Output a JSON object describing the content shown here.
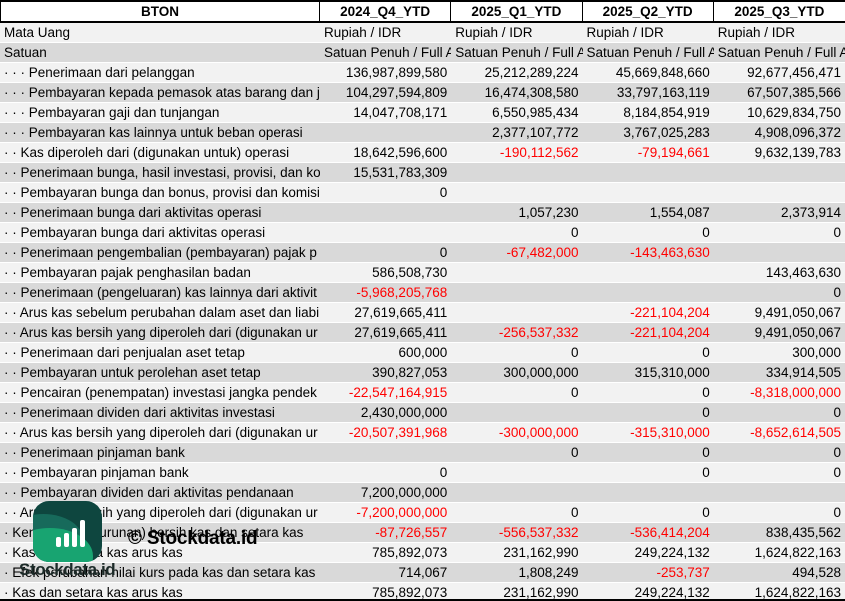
{
  "colors": {
    "negative_value": "#ff0000",
    "stripe_light": "#f2f2f2",
    "stripe_dark": "#d9d9d9",
    "logo_dark_teal": "#0e463f",
    "logo_green": "#18a471"
  },
  "table": {
    "ticker": "BTON",
    "periods": [
      "2024_Q4_YTD",
      "2025_Q1_YTD",
      "2025_Q2_YTD",
      "2025_Q3_YTD"
    ],
    "currency_row": {
      "label": "Mata Uang",
      "values": [
        "Rupiah / IDR",
        "Rupiah / IDR",
        "Rupiah / IDR",
        "Rupiah / IDR"
      ]
    },
    "unit_row": {
      "label": "Satuan",
      "values": [
        "Satuan Penuh / Full A",
        "Satuan Penuh / Full A",
        "Satuan Penuh / Full A",
        "Satuan Penuh / Full A"
      ]
    },
    "rows": [
      {
        "label": "· · · Penerimaan dari pelanggan",
        "values": [
          "136,987,899,580",
          "25,212,289,224",
          "45,669,848,660",
          "92,677,456,471"
        ]
      },
      {
        "label": "· · · Pembayaran kepada pemasok atas barang dan ja",
        "values": [
          "104,297,594,809",
          "16,474,308,580",
          "33,797,163,119",
          "67,507,385,566"
        ]
      },
      {
        "label": "· · · Pembayaran gaji dan tunjangan",
        "values": [
          "14,047,708,171",
          "6,550,985,434",
          "8,184,854,919",
          "10,629,834,750"
        ]
      },
      {
        "label": "· · · Pembayaran kas lainnya untuk beban operasi",
        "values": [
          "",
          "2,377,107,772",
          "3,767,025,283",
          "4,908,096,372"
        ]
      },
      {
        "label": "· · Kas diperoleh dari (digunakan untuk) operasi",
        "values": [
          "18,642,596,600",
          "-190,112,562",
          "-79,194,661",
          "9,632,139,783"
        ]
      },
      {
        "label": "· · Penerimaan bunga, hasil investasi, provisi, dan ko",
        "values": [
          "15,531,783,309",
          "",
          "",
          ""
        ]
      },
      {
        "label": "· · Pembayaran bunga dan bonus, provisi dan komisi",
        "values": [
          "0",
          "",
          "",
          ""
        ]
      },
      {
        "label": "· · Penerimaan bunga dari aktivitas operasi",
        "values": [
          "",
          "1,057,230",
          "1,554,087",
          "2,373,914"
        ]
      },
      {
        "label": "· · Pembayaran bunga dari aktivitas operasi",
        "values": [
          "",
          "0",
          "0",
          "0"
        ]
      },
      {
        "label": "· · Penerimaan pengembalian (pembayaran) pajak p",
        "values": [
          "0",
          "-67,482,000",
          "-143,463,630",
          ""
        ]
      },
      {
        "label": "· · Pembayaran pajak penghasilan badan",
        "values": [
          "586,508,730",
          "",
          "",
          "143,463,630"
        ]
      },
      {
        "label": "· · Penerimaan (pengeluaran) kas lainnya dari aktivit",
        "values": [
          "-5,968,205,768",
          "",
          "",
          "0"
        ]
      },
      {
        "label": "· · Arus kas sebelum perubahan dalam aset dan liabi",
        "values": [
          "27,619,665,411",
          "",
          "-221,104,204",
          "9,491,050,067"
        ]
      },
      {
        "label": "· · Arus kas bersih yang diperoleh dari (digunakan ur",
        "values": [
          "27,619,665,411",
          "-256,537,332",
          "-221,104,204",
          "9,491,050,067"
        ]
      },
      {
        "label": "· · Penerimaan dari penjualan aset tetap",
        "values": [
          "600,000",
          "0",
          "0",
          "300,000"
        ]
      },
      {
        "label": "· · Pembayaran untuk perolehan aset tetap",
        "values": [
          "390,827,053",
          "300,000,000",
          "315,310,000",
          "334,914,505"
        ]
      },
      {
        "label": "· · Pencairan (penempatan) investasi jangka pendek",
        "values": [
          "-22,547,164,915",
          "0",
          "0",
          "-8,318,000,000"
        ]
      },
      {
        "label": "· · Penerimaan dividen dari aktivitas investasi",
        "values": [
          "2,430,000,000",
          "",
          "0",
          "0"
        ]
      },
      {
        "label": "· · Arus kas bersih yang diperoleh dari (digunakan ur",
        "values": [
          "-20,507,391,968",
          "-300,000,000",
          "-315,310,000",
          "-8,652,614,505"
        ]
      },
      {
        "label": "· · Penerimaan pinjaman bank",
        "values": [
          "",
          "0",
          "0",
          "0"
        ]
      },
      {
        "label": "· · Pembayaran pinjaman bank",
        "values": [
          "0",
          "",
          "0",
          "0"
        ]
      },
      {
        "label": "· · Pembayaran dividen dari aktivitas pendanaan",
        "values": [
          "7,200,000,000",
          "",
          "",
          ""
        ]
      },
      {
        "label": "· · Arus kas bersih yang diperoleh dari (digunakan ur",
        "values": [
          "-7,200,000,000",
          "0",
          "0",
          "0"
        ]
      },
      {
        "label": "· Kenaikan (penurunan) bersih kas dan setara kas",
        "values": [
          "-87,726,557",
          "-556,537,332",
          "-536,414,204",
          "838,435,562"
        ]
      },
      {
        "label": "· Kas dan setara kas arus kas",
        "values": [
          "785,892,073",
          "231,162,990",
          "249,224,132",
          "1,624,822,163"
        ]
      },
      {
        "label": "· Efek perubahan nilai kurs pada kas dan setara kas",
        "values": [
          "714,067",
          "1,808,249",
          "-253,737",
          "494,528"
        ]
      },
      {
        "label": "· Kas dan setara kas arus kas",
        "values": [
          "785,892,073",
          "231,162,990",
          "249,224,132",
          "1,624,822,163"
        ]
      }
    ]
  },
  "watermark": {
    "copyright": "© Stockdata.id",
    "brand": "Stockdata.id",
    "logo_icon": "bar-chart-icon"
  }
}
